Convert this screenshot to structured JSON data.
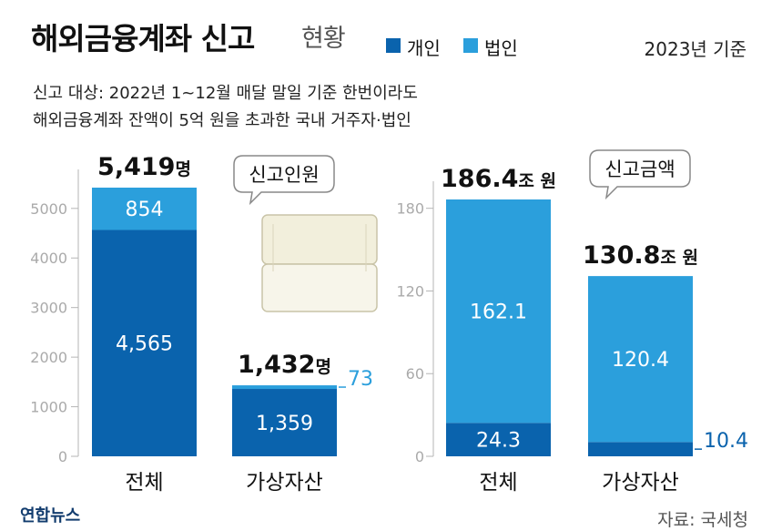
{
  "header": {
    "title": "해외금융계좌 신고",
    "title_suffix": "현황",
    "legend": [
      {
        "label": "개인",
        "color": "#0a63ad"
      },
      {
        "label": "법인",
        "color": "#2b9fdc"
      }
    ],
    "basis": "2023년 기준"
  },
  "description": {
    "line1": "신고 대상: 2022년 1~12월 매달 말일 기준 한번이라도",
    "line2": "해외금융계좌 잔액이 5억 원을 초과한 국내 거주자·법인"
  },
  "footer": {
    "source": "자료: 국세청",
    "logo": "연합뉴스"
  },
  "colors": {
    "individual": "#0a63ad",
    "corporate": "#2b9fdc",
    "axis": "#b5b5b5"
  },
  "chart_data": [
    {
      "type": "bar",
      "stacked": true,
      "title": "신고인원",
      "categories": [
        "전체",
        "가상자산"
      ],
      "series": [
        {
          "name": "개인",
          "values": [
            4565,
            1359
          ],
          "labels": [
            "4,565",
            "1,359"
          ]
        },
        {
          "name": "법인",
          "values": [
            854,
            73
          ],
          "labels": [
            "854",
            "73"
          ]
        }
      ],
      "totals": [
        {
          "value": "5,419",
          "unit": "명"
        },
        {
          "value": "1,432",
          "unit": "명"
        }
      ],
      "ylim": [
        0,
        5419
      ],
      "yticks": [
        0,
        1000,
        2000,
        3000,
        4000,
        5000
      ],
      "ytick_labels": [
        "0",
        "1000",
        "2000",
        "3000",
        "4000",
        "5000"
      ]
    },
    {
      "type": "bar",
      "stacked": true,
      "title": "신고금액",
      "categories": [
        "전체",
        "가상자산"
      ],
      "series": [
        {
          "name": "개인",
          "values": [
            24.3,
            10.4
          ],
          "labels": [
            "24.3",
            "10.4"
          ]
        },
        {
          "name": "법인",
          "values": [
            162.1,
            120.4
          ],
          "labels": [
            "162.1",
            "120.4"
          ]
        }
      ],
      "totals": [
        {
          "value": "186.4",
          "unit": "조 원"
        },
        {
          "value": "130.8",
          "unit": "조 원"
        }
      ],
      "ylim": [
        0,
        186.4
      ],
      "yticks": [
        0,
        60,
        120,
        180
      ],
      "ytick_labels": [
        "0",
        "60",
        "120",
        "180"
      ]
    }
  ]
}
